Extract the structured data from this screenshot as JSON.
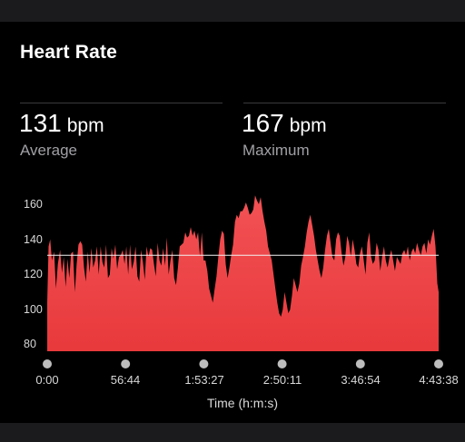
{
  "card": {
    "title": "Heart Rate",
    "average": {
      "value": "131",
      "unit": "bpm",
      "label": "Average"
    },
    "maximum": {
      "value": "167",
      "unit": "bpm",
      "label": "Maximum"
    }
  },
  "colors": {
    "fill_top": "#f25255",
    "fill_bottom": "#e8393c",
    "average_line": "#f2f2f2",
    "background": "#000000"
  },
  "chart_data": {
    "type": "area",
    "xlabel": "Time (h:m:s)",
    "ylabel": "",
    "y_ticks": [
      "160",
      "140",
      "120",
      "100",
      "80"
    ],
    "x_ticks": [
      "0:00",
      "56:44",
      "1:53:27",
      "2:50:11",
      "3:46:54",
      "4:43:38"
    ],
    "ylim": [
      76,
      166
    ],
    "xlim_seconds": [
      0,
      17018
    ],
    "average_line": 131,
    "series": [
      {
        "values": [
          [
            0,
            104
          ],
          [
            60,
            136
          ],
          [
            130,
            140
          ],
          [
            200,
            128
          ],
          [
            300,
            133
          ],
          [
            380,
            112
          ],
          [
            460,
            126
          ],
          [
            560,
            134
          ],
          [
            640,
            121
          ],
          [
            720,
            130
          ],
          [
            800,
            113
          ],
          [
            880,
            129
          ],
          [
            960,
            118
          ],
          [
            1040,
            132
          ],
          [
            1120,
            133
          ],
          [
            1200,
            110
          ],
          [
            1280,
            126
          ],
          [
            1360,
            137
          ],
          [
            1440,
            139
          ],
          [
            1520,
            137
          ],
          [
            1600,
            124
          ],
          [
            1680,
            116
          ],
          [
            1760,
            133
          ],
          [
            1840,
            121
          ],
          [
            1920,
            135
          ],
          [
            2000,
            124
          ],
          [
            2080,
            128
          ],
          [
            2160,
            136
          ],
          [
            2240,
            120
          ],
          [
            2320,
            136
          ],
          [
            2400,
            127
          ],
          [
            2480,
            124
          ],
          [
            2560,
            137
          ],
          [
            2640,
            118
          ],
          [
            2720,
            120
          ],
          [
            2800,
            135
          ],
          [
            2880,
            129
          ],
          [
            2960,
            137
          ],
          [
            3040,
            123
          ],
          [
            3120,
            130
          ],
          [
            3200,
            131
          ],
          [
            3280,
            134
          ],
          [
            3360,
            126
          ],
          [
            3440,
            136
          ],
          [
            3520,
            120
          ],
          [
            3600,
            137
          ],
          [
            3680,
            123
          ],
          [
            3760,
            127
          ],
          [
            3840,
            136
          ],
          [
            3920,
            119
          ],
          [
            4000,
            116
          ],
          [
            4080,
            134
          ],
          [
            4160,
            127
          ],
          [
            4240,
            117
          ],
          [
            4320,
            136
          ],
          [
            4400,
            130
          ],
          [
            4480,
            135
          ],
          [
            4560,
            134
          ],
          [
            4640,
            126
          ],
          [
            4720,
            119
          ],
          [
            4800,
            138
          ],
          [
            4880,
            128
          ],
          [
            4960,
            125
          ],
          [
            5040,
            135
          ],
          [
            5120,
            125
          ],
          [
            5200,
            141
          ],
          [
            5280,
            120
          ],
          [
            5360,
            128
          ],
          [
            5440,
            134
          ],
          [
            5520,
            118
          ],
          [
            5600,
            114
          ],
          [
            5680,
            124
          ],
          [
            5760,
            136
          ],
          [
            5840,
            137
          ],
          [
            5920,
            138
          ],
          [
            6000,
            144
          ],
          [
            6080,
            141
          ],
          [
            6160,
            142
          ],
          [
            6240,
            147
          ],
          [
            6320,
            142
          ],
          [
            6400,
            145
          ],
          [
            6480,
            140
          ],
          [
            6560,
            144
          ],
          [
            6640,
            130
          ],
          [
            6720,
            144
          ],
          [
            6800,
            128
          ],
          [
            6880,
            128
          ],
          [
            6960,
            122
          ],
          [
            7040,
            112
          ],
          [
            7120,
            108
          ],
          [
            7200,
            104
          ],
          [
            7280,
            112
          ],
          [
            7360,
            119
          ],
          [
            7440,
            130
          ],
          [
            7520,
            140
          ],
          [
            7600,
            145
          ],
          [
            7680,
            143
          ],
          [
            7760,
            126
          ],
          [
            7840,
            118
          ],
          [
            7920,
            124
          ],
          [
            8000,
            131
          ],
          [
            8080,
            137
          ],
          [
            8160,
            150
          ],
          [
            8240,
            154
          ],
          [
            8320,
            152
          ],
          [
            8400,
            156
          ],
          [
            8480,
            156
          ],
          [
            8560,
            158
          ],
          [
            8640,
            161
          ],
          [
            8720,
            158
          ],
          [
            8800,
            154
          ],
          [
            8880,
            155
          ],
          [
            8960,
            157
          ],
          [
            9040,
            165
          ],
          [
            9120,
            162
          ],
          [
            9200,
            160
          ],
          [
            9280,
            164
          ],
          [
            9360,
            156
          ],
          [
            9440,
            150
          ],
          [
            9520,
            145
          ],
          [
            9600,
            136
          ],
          [
            9680,
            132
          ],
          [
            9760,
            128
          ],
          [
            9840,
            120
          ],
          [
            9920,
            112
          ],
          [
            10000,
            104
          ],
          [
            10080,
            98
          ],
          [
            10160,
            96
          ],
          [
            10240,
            100
          ],
          [
            10320,
            110
          ],
          [
            10400,
            104
          ],
          [
            10480,
            98
          ],
          [
            10560,
            100
          ],
          [
            10640,
            108
          ],
          [
            10720,
            118
          ],
          [
            10800,
            114
          ],
          [
            10880,
            110
          ],
          [
            10960,
            115
          ],
          [
            11040,
            125
          ],
          [
            11120,
            130
          ],
          [
            11200,
            136
          ],
          [
            11280,
            144
          ],
          [
            11360,
            150
          ],
          [
            11440,
            154
          ],
          [
            11520,
            148
          ],
          [
            11600,
            142
          ],
          [
            11680,
            134
          ],
          [
            11760,
            128
          ],
          [
            11840,
            122
          ],
          [
            11920,
            118
          ],
          [
            12000,
            124
          ],
          [
            12080,
            134
          ],
          [
            12160,
            142
          ],
          [
            12240,
            146
          ],
          [
            12320,
            138
          ],
          [
            12400,
            130
          ],
          [
            12480,
            128
          ],
          [
            12560,
            140
          ],
          [
            12640,
            144
          ],
          [
            12720,
            142
          ],
          [
            12800,
            132
          ],
          [
            12880,
            125
          ],
          [
            12960,
            130
          ],
          [
            13040,
            142
          ],
          [
            13120,
            138
          ],
          [
            13200,
            130
          ],
          [
            13280,
            140
          ],
          [
            13360,
            134
          ],
          [
            13440,
            126
          ],
          [
            13520,
            124
          ],
          [
            13600,
            132
          ],
          [
            13680,
            136
          ],
          [
            13760,
            128
          ],
          [
            13840,
            120
          ],
          [
            13920,
            138
          ],
          [
            14000,
            144
          ],
          [
            14080,
            130
          ],
          [
            14160,
            126
          ],
          [
            14240,
            128
          ],
          [
            14320,
            138
          ],
          [
            14400,
            134
          ],
          [
            14480,
            122
          ],
          [
            14560,
            130
          ],
          [
            14640,
            136
          ],
          [
            14720,
            128
          ],
          [
            14800,
            124
          ],
          [
            14880,
            130
          ],
          [
            14960,
            134
          ],
          [
            15040,
            128
          ],
          [
            15120,
            122
          ],
          [
            15200,
            130
          ],
          [
            15280,
            128
          ],
          [
            15360,
            126
          ],
          [
            15440,
            132
          ],
          [
            15520,
            134
          ],
          [
            15600,
            131
          ],
          [
            15680,
            136
          ],
          [
            15760,
            128
          ],
          [
            15840,
            133
          ],
          [
            15920,
            135
          ],
          [
            16000,
            132
          ],
          [
            16080,
            138
          ],
          [
            16160,
            134
          ],
          [
            16240,
            131
          ],
          [
            16320,
            136
          ],
          [
            16400,
            138
          ],
          [
            16480,
            132
          ],
          [
            16560,
            140
          ],
          [
            16640,
            137
          ],
          [
            16720,
            142
          ],
          [
            16800,
            146
          ],
          [
            16880,
            136
          ],
          [
            16960,
            115
          ],
          [
            17018,
            110
          ]
        ]
      }
    ]
  }
}
